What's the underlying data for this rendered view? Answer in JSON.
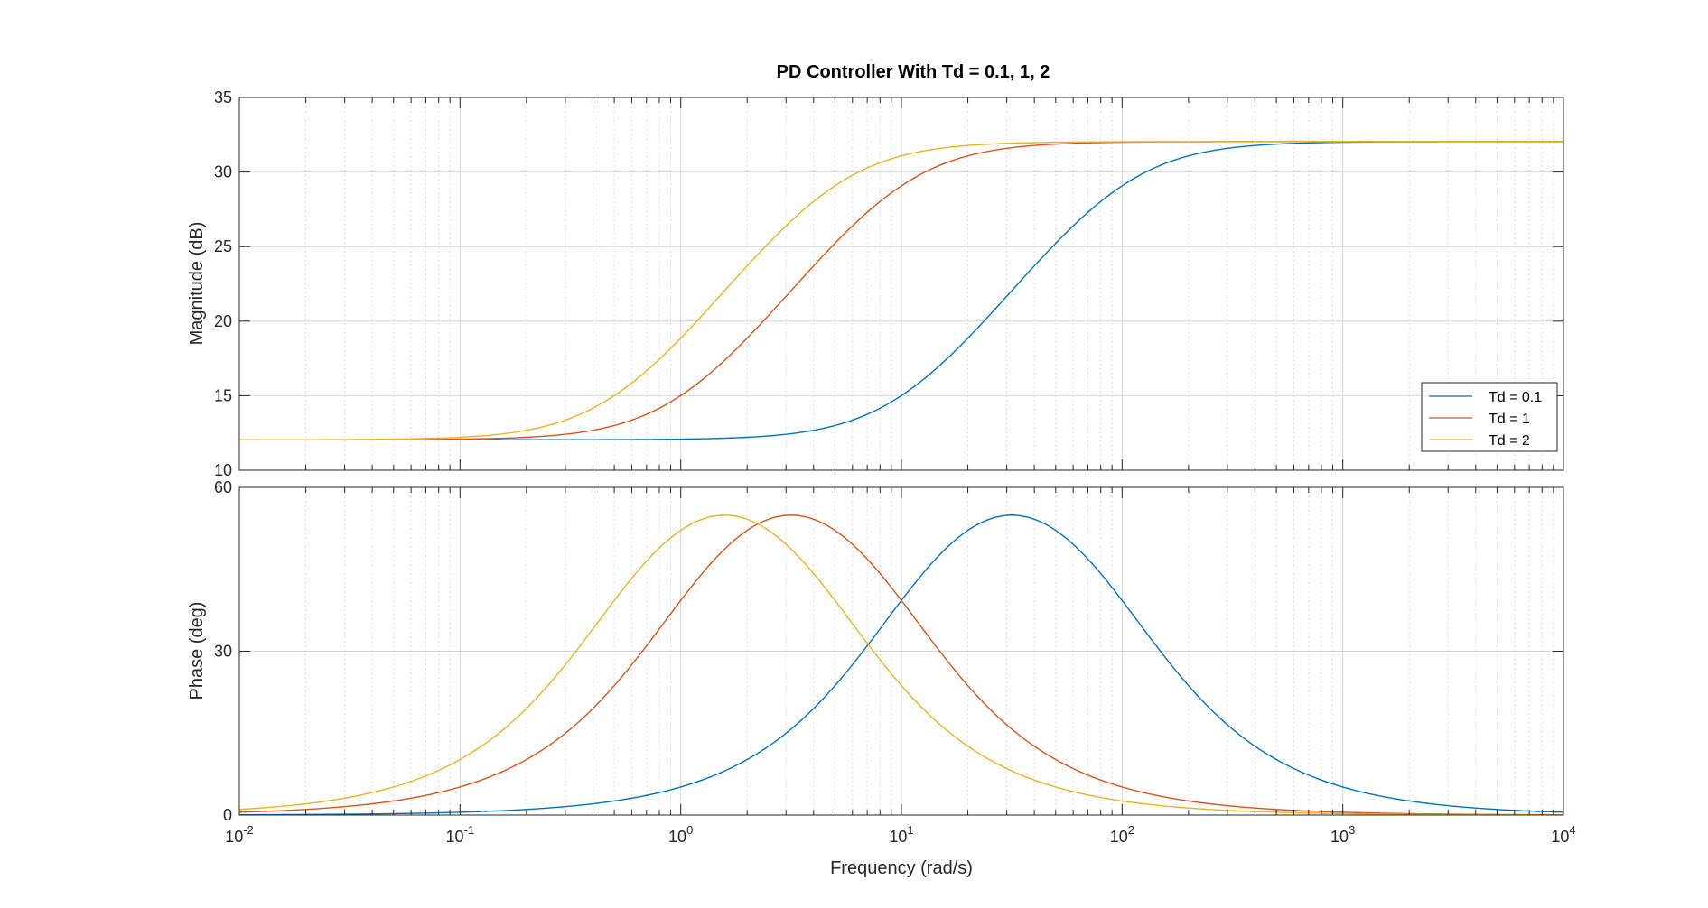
{
  "chart_data": {
    "type": "line",
    "title": "PD Controller With Td = 0.1, 1, 2",
    "xlabel": "Frequency  (rad/s)",
    "x_scale": "log",
    "xlim": [
      0.01,
      10000
    ],
    "x_ticks": [
      {
        "value": 0.01,
        "base": "10",
        "exp": "-2"
      },
      {
        "value": 0.1,
        "base": "10",
        "exp": "-1"
      },
      {
        "value": 1,
        "base": "10",
        "exp": "0"
      },
      {
        "value": 10,
        "base": "10",
        "exp": "1"
      },
      {
        "value": 100,
        "base": "10",
        "exp": "2"
      },
      {
        "value": 1000,
        "base": "10",
        "exp": "3"
      },
      {
        "value": 10000,
        "base": "10",
        "exp": "4"
      }
    ],
    "grid": true,
    "legend_location": "lower-right of magnitude panel",
    "series": [
      {
        "name": "Td = 0.1",
        "color": "#0072BD",
        "Td": 0.1
      },
      {
        "name": "Td = 1",
        "color": "#D95319",
        "Td": 1
      },
      {
        "name": "Td = 2",
        "color": "#EDB120",
        "Td": 2
      }
    ],
    "panels": [
      {
        "id": "magnitude",
        "ylabel": "Magnitude (dB)",
        "ylim": [
          10,
          35
        ],
        "y_ticks": [
          "10",
          "15",
          "20",
          "25",
          "30",
          "35"
        ],
        "x": [
          0.01,
          0.1,
          0.3,
          1,
          3,
          10,
          30,
          100,
          1000,
          10000
        ],
        "values": {
          "Td = 0.1": [
            12.0,
            12.0,
            12.0,
            12.1,
            12.6,
            15.5,
            22.5,
            29.7,
            32.7,
            32.8
          ],
          "Td = 1": [
            12.0,
            12.1,
            12.6,
            15.5,
            22.5,
            29.7,
            32.4,
            32.7,
            32.8,
            32.8
          ],
          "Td = 2": [
            12.0,
            12.3,
            13.8,
            19.0,
            26.2,
            31.3,
            32.6,
            32.8,
            32.8,
            32.8
          ]
        }
      },
      {
        "id": "phase",
        "ylabel": "Phase (deg)",
        "ylim": [
          0,
          60
        ],
        "y_ticks": [
          "0",
          "30",
          "60"
        ],
        "x": [
          0.01,
          0.1,
          0.3,
          1,
          1.5,
          3,
          10,
          30,
          100,
          1000,
          10000
        ],
        "values": {
          "Td = 0.1": [
            0.1,
            0.8,
            2.0,
            5.7,
            8.0,
            15.7,
            40.0,
            56.6,
            40.0,
            5.7,
            0.6
          ],
          "Td = 1": [
            0.6,
            5.7,
            15.7,
            40.0,
            49.0,
            56.6,
            40.0,
            15.7,
            5.1,
            0.5,
            0.1
          ],
          "Td = 2": [
            1.1,
            11.0,
            28.0,
            50.0,
            56.6,
            51.0,
            28.0,
            8.5,
            2.6,
            0.3,
            0.0
          ]
        }
      }
    ]
  }
}
